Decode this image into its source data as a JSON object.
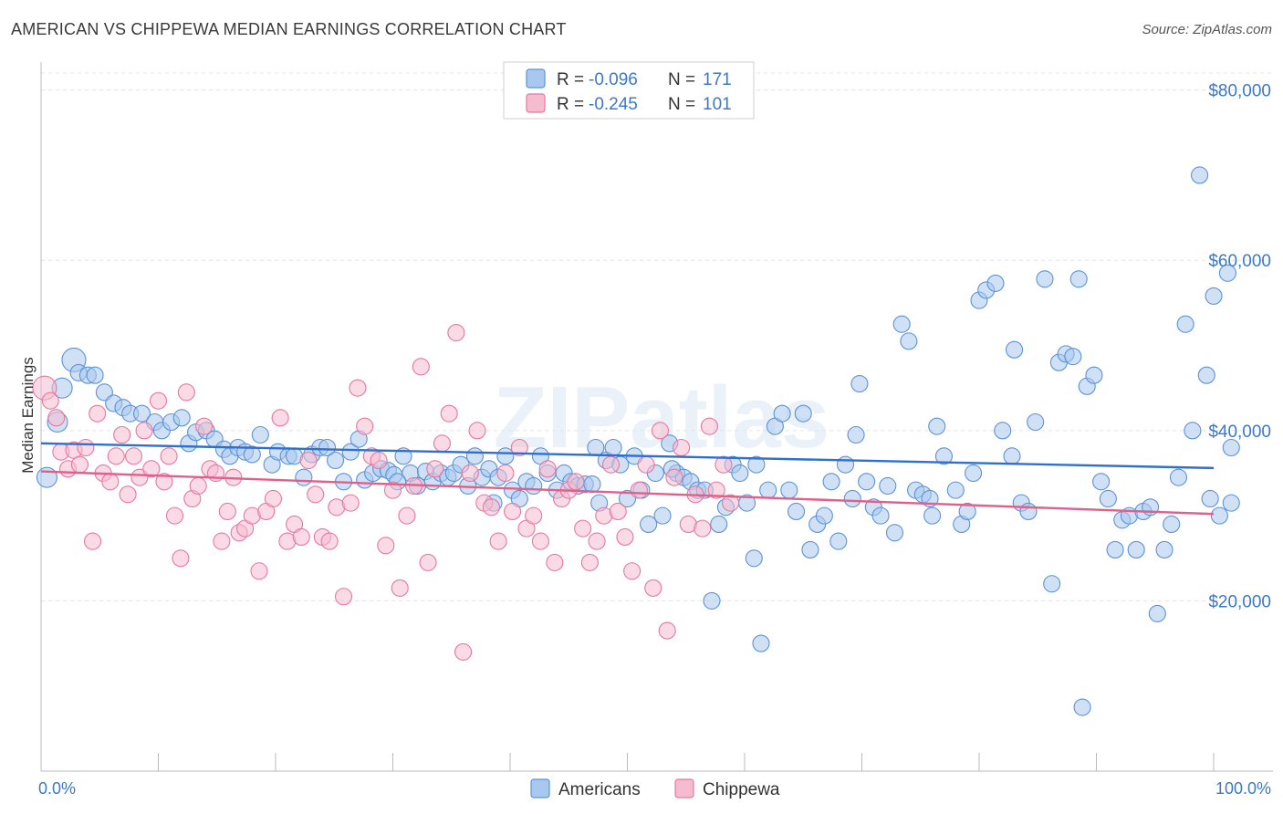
{
  "title": "AMERICAN VS CHIPPEWA MEDIAN EARNINGS CORRELATION CHART",
  "source": "Source: ZipAtlas.com",
  "watermark": "ZIPatlas",
  "colors": {
    "americans": "#5b93d9",
    "americans_fill": "#a9c8ef",
    "chippewa": "#e8789c",
    "chippewa_fill": "#f5bcd0",
    "axis_text": "#3b78c9",
    "americans_trend": "#2f6fd0",
    "chippewa_trend": "#e0608a"
  },
  "legend": {
    "rows": [
      {
        "r_label": "R =",
        "r_value": "-0.096",
        "n_label": "N =",
        "n_value": "171"
      },
      {
        "r_label": "R =",
        "r_value": "-0.245",
        "n_label": "N =",
        "n_value": "101"
      }
    ]
  },
  "bottom_legend": [
    "Americans",
    "Chippewa"
  ],
  "chart_data": {
    "type": "scatter",
    "title": "AMERICAN VS CHIPPEWA MEDIAN EARNINGS CORRELATION CHART",
    "xlabel": "",
    "ylabel": "Median Earnings",
    "xlim": [
      0,
      100
    ],
    "ylim": [
      0,
      82000
    ],
    "x_tick_labels": [
      "0.0%",
      "100.0%"
    ],
    "y_ticks": [
      20000,
      40000,
      60000,
      80000
    ],
    "y_tick_labels": [
      "$20,000",
      "$40,000",
      "$60,000",
      "$80,000"
    ],
    "grid": true,
    "legend_position": "top-center",
    "series": [
      {
        "name": "Americans",
        "trend": {
          "x": [
            0,
            100
          ],
          "y": [
            38500,
            35600
          ]
        },
        "points": [
          [
            0.5,
            34500
          ],
          [
            1.4,
            41000
          ],
          [
            1.8,
            45000
          ],
          [
            2.8,
            48300
          ],
          [
            3.2,
            46800
          ],
          [
            4.0,
            46500
          ],
          [
            4.6,
            46500
          ],
          [
            5.4,
            44500
          ],
          [
            6.2,
            43200
          ],
          [
            7.0,
            42700
          ],
          [
            7.6,
            42000
          ],
          [
            8.6,
            42000
          ],
          [
            9.7,
            41000
          ],
          [
            10.3,
            40000
          ],
          [
            11.1,
            41000
          ],
          [
            12.0,
            41500
          ],
          [
            12.6,
            38500
          ],
          [
            13.2,
            39800
          ],
          [
            14.1,
            40000
          ],
          [
            14.8,
            39000
          ],
          [
            15.6,
            37800
          ],
          [
            16.1,
            37000
          ],
          [
            16.8,
            38000
          ],
          [
            17.4,
            37500
          ],
          [
            18.0,
            37200
          ],
          [
            18.7,
            39500
          ],
          [
            19.7,
            36000
          ],
          [
            20.2,
            37500
          ],
          [
            21.1,
            37000
          ],
          [
            21.6,
            37000
          ],
          [
            22.4,
            34500
          ],
          [
            23.1,
            37200
          ],
          [
            23.8,
            38000
          ],
          [
            24.4,
            38000
          ],
          [
            25.1,
            36500
          ],
          [
            25.8,
            34000
          ],
          [
            26.4,
            37500
          ],
          [
            27.1,
            39000
          ],
          [
            27.6,
            34200
          ],
          [
            28.3,
            35000
          ],
          [
            29.0,
            35500
          ],
          [
            29.6,
            35300
          ],
          [
            30.1,
            34800
          ],
          [
            30.9,
            37000
          ],
          [
            31.5,
            35000
          ],
          [
            32.1,
            33500
          ],
          [
            32.8,
            35200
          ],
          [
            33.4,
            34000
          ],
          [
            34.1,
            35000
          ],
          [
            34.7,
            34500
          ],
          [
            35.2,
            35000
          ],
          [
            35.8,
            36000
          ],
          [
            36.4,
            33500
          ],
          [
            37.0,
            37000
          ],
          [
            37.6,
            34500
          ],
          [
            38.2,
            35500
          ],
          [
            39.0,
            34500
          ],
          [
            39.6,
            37000
          ],
          [
            40.2,
            33000
          ],
          [
            40.8,
            32000
          ],
          [
            41.4,
            34000
          ],
          [
            42.0,
            33500
          ],
          [
            42.6,
            37000
          ],
          [
            43.2,
            35000
          ],
          [
            44.0,
            33000
          ],
          [
            44.6,
            35000
          ],
          [
            45.2,
            34000
          ],
          [
            45.8,
            33500
          ],
          [
            46.4,
            33700
          ],
          [
            47.0,
            33700
          ],
          [
            47.6,
            31500
          ],
          [
            48.2,
            36500
          ],
          [
            48.8,
            38000
          ],
          [
            49.4,
            36000
          ],
          [
            50.0,
            32000
          ],
          [
            50.6,
            37000
          ],
          [
            51.2,
            33000
          ],
          [
            51.8,
            29000
          ],
          [
            52.4,
            35000
          ],
          [
            53.0,
            30000
          ],
          [
            53.6,
            38500
          ],
          [
            54.2,
            35000
          ],
          [
            54.8,
            34500
          ],
          [
            55.4,
            34000
          ],
          [
            56.0,
            33000
          ],
          [
            56.6,
            33000
          ],
          [
            57.2,
            20000
          ],
          [
            57.8,
            29000
          ],
          [
            58.4,
            31000
          ],
          [
            59.0,
            36000
          ],
          [
            59.6,
            35000
          ],
          [
            60.2,
            31500
          ],
          [
            60.8,
            25000
          ],
          [
            61.4,
            15000
          ],
          [
            62.0,
            33000
          ],
          [
            62.6,
            40500
          ],
          [
            63.2,
            42000
          ],
          [
            63.8,
            33000
          ],
          [
            64.4,
            30500
          ],
          [
            65.0,
            42000
          ],
          [
            65.6,
            26000
          ],
          [
            66.2,
            29000
          ],
          [
            66.8,
            30000
          ],
          [
            67.4,
            34000
          ],
          [
            68.0,
            27000
          ],
          [
            68.6,
            36000
          ],
          [
            69.2,
            32000
          ],
          [
            69.8,
            45500
          ],
          [
            70.4,
            34000
          ],
          [
            71.0,
            31000
          ],
          [
            71.6,
            30000
          ],
          [
            72.2,
            33500
          ],
          [
            72.8,
            28000
          ],
          [
            73.4,
            52500
          ],
          [
            74.0,
            50500
          ],
          [
            74.6,
            33000
          ],
          [
            75.2,
            32500
          ],
          [
            75.8,
            32000
          ],
          [
            76.4,
            40500
          ],
          [
            77.0,
            37000
          ],
          [
            78.0,
            33000
          ],
          [
            78.5,
            29000
          ],
          [
            79.0,
            30500
          ],
          [
            80.0,
            55300
          ],
          [
            80.6,
            56500
          ],
          [
            81.4,
            57300
          ],
          [
            82.0,
            40000
          ],
          [
            82.8,
            37000
          ],
          [
            83.6,
            31500
          ],
          [
            84.2,
            30500
          ],
          [
            84.8,
            41000
          ],
          [
            85.6,
            57800
          ],
          [
            86.2,
            22000
          ],
          [
            86.8,
            48000
          ],
          [
            87.4,
            49000
          ],
          [
            88.0,
            48700
          ],
          [
            88.5,
            57800
          ],
          [
            89.2,
            45200
          ],
          [
            89.8,
            46500
          ],
          [
            90.4,
            34000
          ],
          [
            91.0,
            32000
          ],
          [
            91.6,
            26000
          ],
          [
            92.2,
            29500
          ],
          [
            92.8,
            30000
          ],
          [
            93.4,
            26000
          ],
          [
            94.0,
            30500
          ],
          [
            94.6,
            31000
          ],
          [
            95.2,
            18500
          ],
          [
            95.8,
            26000
          ],
          [
            96.4,
            29000
          ],
          [
            97.0,
            34500
          ],
          [
            97.6,
            52500
          ],
          [
            98.2,
            40000
          ],
          [
            98.8,
            70000
          ],
          [
            99.4,
            46500
          ],
          [
            99.7,
            32000
          ],
          [
            100.0,
            55800
          ],
          [
            100.5,
            30000
          ],
          [
            101.2,
            58500
          ],
          [
            102.0,
            31500
          ],
          [
            102.5,
            38000
          ],
          [
            88.8,
            7500
          ],
          [
            83.0,
            49500
          ],
          [
            79.5,
            35000
          ],
          [
            76.0,
            30000
          ],
          [
            69.5,
            39500
          ],
          [
            61.0,
            36000
          ],
          [
            53.8,
            35500
          ],
          [
            47.3,
            38000
          ],
          [
            38.6,
            31500
          ],
          [
            30.4,
            34000
          ]
        ]
      },
      {
        "name": "Chippewa",
        "trend": {
          "x": [
            0,
            100
          ],
          "y": [
            35200,
            30200
          ]
        },
        "points": [
          [
            0.3,
            45000
          ],
          [
            0.8,
            43500
          ],
          [
            1.3,
            41500
          ],
          [
            1.7,
            37500
          ],
          [
            2.3,
            35500
          ],
          [
            2.8,
            37700
          ],
          [
            3.3,
            36000
          ],
          [
            3.8,
            38000
          ],
          [
            4.4,
            27000
          ],
          [
            4.8,
            42000
          ],
          [
            5.3,
            35000
          ],
          [
            5.9,
            34000
          ],
          [
            6.4,
            37000
          ],
          [
            6.9,
            39500
          ],
          [
            7.4,
            32500
          ],
          [
            7.9,
            37000
          ],
          [
            8.4,
            34500
          ],
          [
            8.8,
            40000
          ],
          [
            9.4,
            35500
          ],
          [
            10.0,
            43500
          ],
          [
            10.5,
            34000
          ],
          [
            10.9,
            37000
          ],
          [
            11.4,
            30000
          ],
          [
            11.9,
            25000
          ],
          [
            12.4,
            44500
          ],
          [
            12.9,
            32000
          ],
          [
            13.4,
            33500
          ],
          [
            13.9,
            40500
          ],
          [
            14.4,
            35500
          ],
          [
            14.9,
            35000
          ],
          [
            15.4,
            27000
          ],
          [
            15.9,
            30500
          ],
          [
            16.4,
            34500
          ],
          [
            16.9,
            28000
          ],
          [
            17.4,
            28500
          ],
          [
            18.0,
            30000
          ],
          [
            18.6,
            23500
          ],
          [
            19.2,
            30500
          ],
          [
            19.8,
            32000
          ],
          [
            20.4,
            41500
          ],
          [
            21.0,
            27000
          ],
          [
            21.6,
            29000
          ],
          [
            22.2,
            27500
          ],
          [
            22.8,
            36500
          ],
          [
            23.4,
            32500
          ],
          [
            24.0,
            27500
          ],
          [
            24.6,
            27000
          ],
          [
            25.2,
            31000
          ],
          [
            25.8,
            20500
          ],
          [
            26.4,
            31500
          ],
          [
            27.0,
            45000
          ],
          [
            27.6,
            40500
          ],
          [
            28.2,
            37000
          ],
          [
            28.8,
            36500
          ],
          [
            29.4,
            26500
          ],
          [
            30.0,
            33000
          ],
          [
            30.6,
            21500
          ],
          [
            31.2,
            30000
          ],
          [
            31.8,
            33500
          ],
          [
            32.4,
            47500
          ],
          [
            33.0,
            24500
          ],
          [
            33.6,
            35500
          ],
          [
            34.2,
            38500
          ],
          [
            34.8,
            42000
          ],
          [
            35.4,
            51500
          ],
          [
            36.0,
            14000
          ],
          [
            36.6,
            35000
          ],
          [
            37.2,
            40000
          ],
          [
            37.8,
            31500
          ],
          [
            38.4,
            31000
          ],
          [
            39.0,
            27000
          ],
          [
            39.6,
            35000
          ],
          [
            40.2,
            30500
          ],
          [
            40.8,
            38000
          ],
          [
            41.4,
            28500
          ],
          [
            42.0,
            30000
          ],
          [
            42.6,
            27000
          ],
          [
            43.2,
            35500
          ],
          [
            43.8,
            24500
          ],
          [
            44.4,
            32000
          ],
          [
            45.0,
            33000
          ],
          [
            45.6,
            34000
          ],
          [
            46.2,
            28500
          ],
          [
            46.8,
            24500
          ],
          [
            47.4,
            27000
          ],
          [
            48.0,
            30000
          ],
          [
            48.6,
            36000
          ],
          [
            49.2,
            30500
          ],
          [
            49.8,
            27500
          ],
          [
            50.4,
            23500
          ],
          [
            51.0,
            33000
          ],
          [
            51.6,
            36000
          ],
          [
            52.2,
            21500
          ],
          [
            52.8,
            40000
          ],
          [
            53.4,
            16500
          ],
          [
            54.0,
            34500
          ],
          [
            54.6,
            38000
          ],
          [
            55.2,
            29000
          ],
          [
            55.8,
            32500
          ],
          [
            56.4,
            28500
          ],
          [
            57.0,
            40500
          ],
          [
            57.6,
            33000
          ],
          [
            58.2,
            36000
          ],
          [
            58.8,
            31500
          ]
        ]
      }
    ]
  }
}
